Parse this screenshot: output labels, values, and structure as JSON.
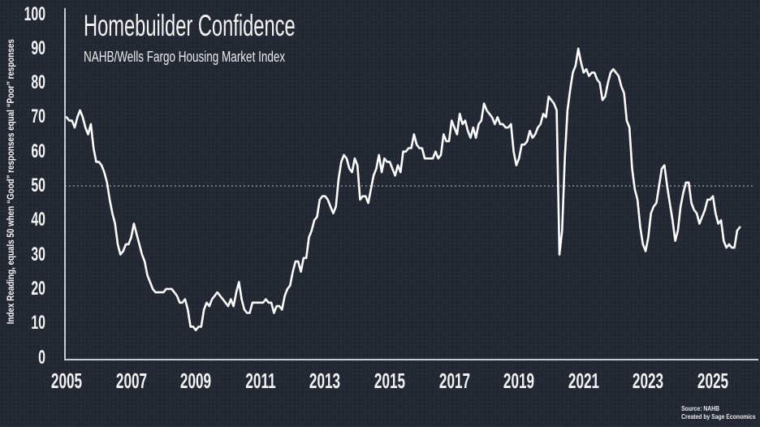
{
  "header": {
    "title": "Homebuilder Confidence",
    "subtitle": "NAHB/Wells Fargo Housing Market Index"
  },
  "footer": {
    "source": "Source: NAHB",
    "credit": "Created by Sage Economics"
  },
  "colors": {
    "background": "#252b36",
    "line": "#ffffff",
    "axis": "#c8ccd2",
    "gridline": "#9aa0a8",
    "text": "#f4f5f6"
  },
  "chart_data": {
    "type": "line",
    "title": "Homebuilder Confidence",
    "subtitle": "NAHB/Wells Fargo Housing Market Index",
    "ylabel": "Index Reading, equals 50 when “Good” responses equal “Poor” responses",
    "xlabel": "",
    "frequency": "monthly",
    "x_start": "2005-01",
    "x_end": "2025-11",
    "ylim": [
      0,
      100
    ],
    "yticks": [
      0,
      10,
      20,
      30,
      40,
      50,
      60,
      70,
      80,
      90,
      100
    ],
    "x_tick_years": [
      2005,
      2007,
      2009,
      2011,
      2013,
      2015,
      2017,
      2019,
      2021,
      2023,
      2025
    ],
    "reference_line_y": 50,
    "grid": "dotted line at 50 only",
    "legend": "none",
    "series": [
      {
        "name": "NAHB/Wells Fargo Housing Market Index",
        "values": [
          70,
          69,
          69,
          67,
          70,
          72,
          70,
          67,
          65,
          68,
          61,
          57,
          57,
          56,
          54,
          51,
          46,
          42,
          39,
          33,
          30,
          31,
          33,
          33,
          35,
          39,
          36,
          33,
          30,
          28,
          24,
          22,
          20,
          19,
          19,
          19,
          19,
          20,
          20,
          20,
          19,
          18,
          16,
          16,
          17,
          14,
          9,
          9,
          8,
          9,
          9,
          14,
          16,
          15,
          17,
          18,
          19,
          18,
          17,
          16,
          15,
          17,
          15,
          19,
          22,
          17,
          14,
          13,
          13,
          16,
          16,
          16,
          16,
          16,
          17,
          16,
          16,
          13,
          15,
          15,
          14,
          18,
          20,
          21,
          25,
          28,
          28,
          25,
          29,
          29,
          35,
          37,
          40,
          41,
          46,
          47,
          47,
          46,
          44,
          42,
          44,
          52,
          57,
          59,
          58,
          55,
          54,
          58,
          56,
          46,
          47,
          47,
          45,
          49,
          53,
          55,
          59,
          54,
          58,
          57,
          57,
          55,
          53,
          56,
          54,
          60,
          60,
          61,
          61,
          65,
          62,
          61,
          61,
          58,
          58,
          58,
          58,
          60,
          58,
          59,
          65,
          63,
          63,
          69,
          67,
          65,
          71,
          68,
          69,
          66,
          64,
          67,
          64,
          68,
          69,
          74,
          72,
          71,
          70,
          68,
          70,
          68,
          68,
          67,
          67,
          68,
          60,
          56,
          58,
          62,
          62,
          63,
          66,
          64,
          65,
          67,
          68,
          71,
          70,
          76,
          75,
          74,
          72,
          30,
          37,
          58,
          72,
          78,
          83,
          85,
          90,
          86,
          83,
          84,
          82,
          83,
          83,
          81,
          80,
          75,
          76,
          80,
          83,
          84,
          83,
          82,
          79,
          77,
          69,
          67,
          55,
          49,
          46,
          38,
          33,
          31,
          35,
          42,
          44,
          45,
          50,
          55,
          56,
          50,
          45,
          40,
          34,
          37,
          44,
          48,
          51,
          51,
          45,
          43,
          42,
          39,
          41,
          43,
          46,
          46,
          47,
          42,
          39,
          40,
          34,
          32,
          33,
          32,
          32,
          37,
          38
        ]
      }
    ]
  }
}
